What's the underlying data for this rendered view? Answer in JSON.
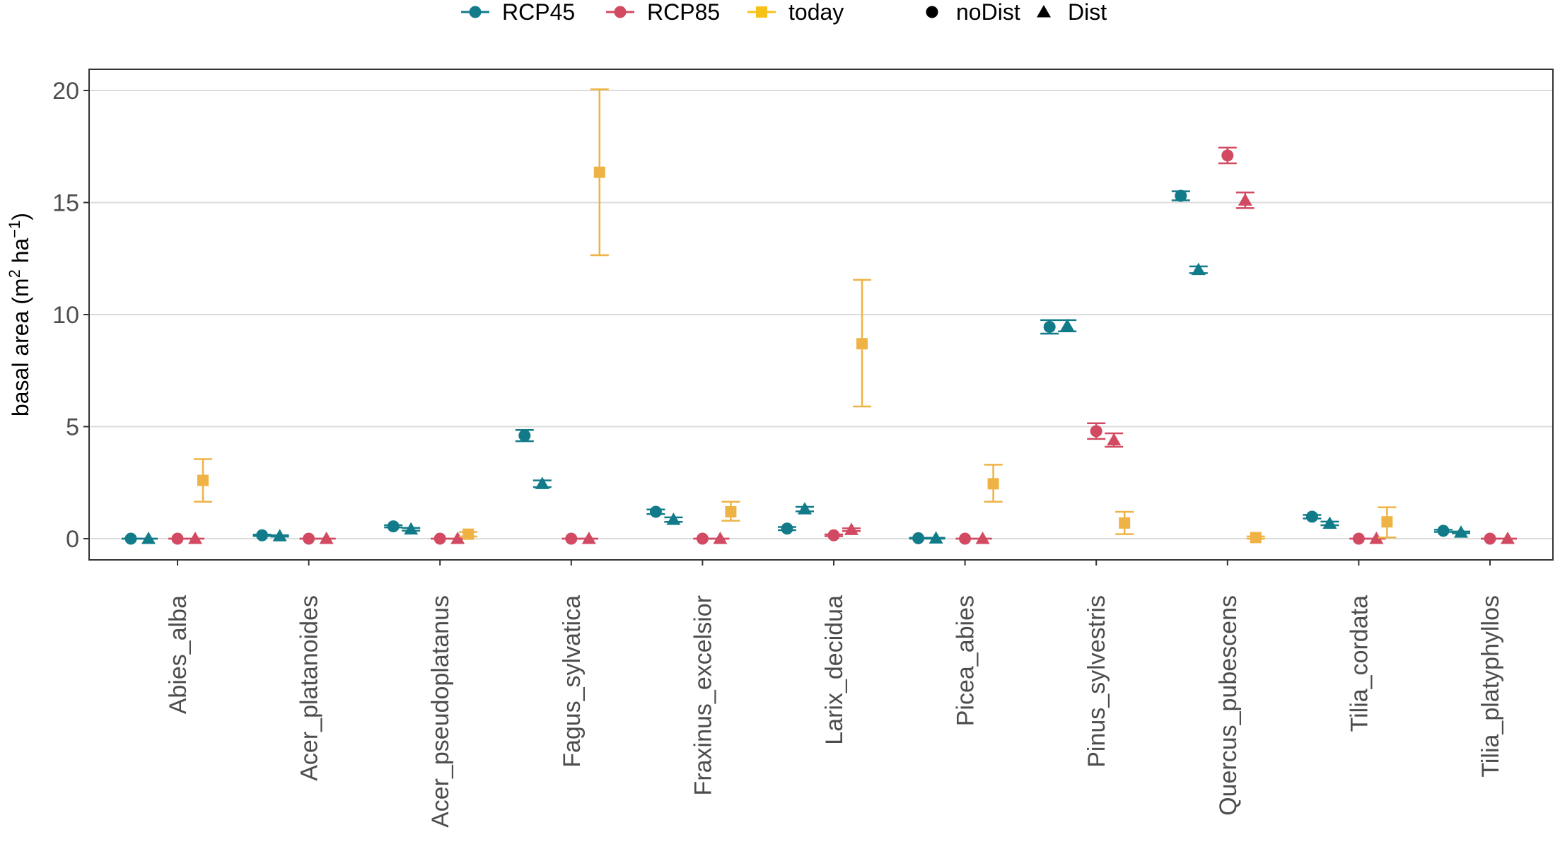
{
  "chart_data": {
    "type": "scatter",
    "subtype": "point-with-error-bars",
    "title": "",
    "xlabel": "",
    "ylabel": "basal area (m² ha⁻¹)",
    "ylabel_parts": {
      "main": "basal area (m",
      "sup1": "2",
      "mid": " ha",
      "sup2": "−1",
      "end": ")"
    },
    "ylim": [
      -1,
      20.9
    ],
    "yticks": [
      0,
      5,
      10,
      15,
      20
    ],
    "grid": "horizontal",
    "legend_position": "top",
    "legend": {
      "series": [
        {
          "name": "RCP45",
          "color": "#127b8a"
        },
        {
          "name": "RCP85",
          "color": "#d24a61"
        },
        {
          "name": "today",
          "color": "#efb345"
        }
      ],
      "shapes": [
        {
          "name": "noDist",
          "shape": "circle"
        },
        {
          "name": "Dist",
          "shape": "triangle"
        }
      ],
      "today_swatch": "#f6c21a",
      "shape_color": "#000000"
    },
    "categories": [
      "Abies_alba",
      "Acer_platanoides",
      "Acer_pseudoplatanus",
      "Fagus_sylvatica",
      "Fraxinus_excelsior",
      "Larix_decidua",
      "Picea_abies",
      "Pinus_sylvestris",
      "Quercus_pubescens",
      "Tilia_cordata",
      "Tilia_platyphyllos"
    ],
    "series": [
      {
        "name": "RCP45-noDist",
        "scenario": "RCP45",
        "disturbance": "noDist",
        "shape": "circle",
        "values": [
          0.0,
          0.15,
          0.55,
          4.6,
          1.2,
          0.45,
          0.02,
          9.45,
          15.3,
          0.98,
          0.35
        ],
        "lower": [
          0.0,
          0.12,
          0.5,
          4.35,
          1.1,
          0.38,
          0.0,
          9.15,
          15.1,
          0.9,
          0.3
        ],
        "upper": [
          0.0,
          0.18,
          0.6,
          4.85,
          1.3,
          0.52,
          0.04,
          9.75,
          15.5,
          1.06,
          0.4
        ]
      },
      {
        "name": "RCP45-Dist",
        "scenario": "RCP45",
        "disturbance": "Dist",
        "shape": "triangle",
        "values": [
          0.0,
          0.12,
          0.42,
          2.45,
          0.85,
          1.32,
          0.02,
          9.5,
          12.0,
          0.68,
          0.28
        ],
        "lower": [
          0.0,
          0.09,
          0.36,
          2.3,
          0.75,
          1.22,
          0.0,
          9.25,
          11.85,
          0.6,
          0.24
        ],
        "upper": [
          0.0,
          0.15,
          0.48,
          2.6,
          0.95,
          1.42,
          0.04,
          9.75,
          12.15,
          0.76,
          0.32
        ]
      },
      {
        "name": "RCP85-noDist",
        "scenario": "RCP85",
        "disturbance": "noDist",
        "shape": "circle",
        "values": [
          0.0,
          0.0,
          0.0,
          0.0,
          0.0,
          0.15,
          0.0,
          4.8,
          17.1,
          0.0,
          0.0
        ],
        "lower": [
          0.0,
          0.0,
          0.0,
          0.0,
          0.0,
          0.11,
          0.0,
          4.45,
          16.75,
          0.0,
          0.0
        ],
        "upper": [
          0.0,
          0.0,
          0.0,
          0.0,
          0.0,
          0.19,
          0.0,
          5.15,
          17.45,
          0.0,
          0.0
        ]
      },
      {
        "name": "RCP85-Dist",
        "scenario": "RCP85",
        "disturbance": "Dist",
        "shape": "triangle",
        "values": [
          0.0,
          0.0,
          0.0,
          0.0,
          0.0,
          0.4,
          0.0,
          4.4,
          15.1,
          0.0,
          0.0
        ],
        "lower": [
          0.0,
          0.0,
          0.0,
          0.0,
          0.0,
          0.34,
          0.0,
          4.1,
          14.75,
          0.0,
          0.0
        ],
        "upper": [
          0.0,
          0.0,
          0.0,
          0.0,
          0.0,
          0.46,
          0.0,
          4.7,
          15.45,
          0.0,
          0.0
        ]
      },
      {
        "name": "today",
        "scenario": "today",
        "disturbance": "none",
        "shape": "square",
        "values": [
          2.6,
          null,
          0.2,
          16.35,
          1.2,
          8.7,
          2.45,
          0.7,
          0.05,
          0.75,
          null
        ],
        "lower": [
          1.65,
          null,
          0.1,
          12.65,
          0.8,
          5.9,
          1.65,
          0.2,
          0.0,
          0.05,
          null
        ],
        "upper": [
          3.55,
          null,
          0.3,
          20.05,
          1.65,
          11.55,
          3.3,
          1.2,
          0.1,
          1.4,
          null
        ]
      }
    ]
  }
}
